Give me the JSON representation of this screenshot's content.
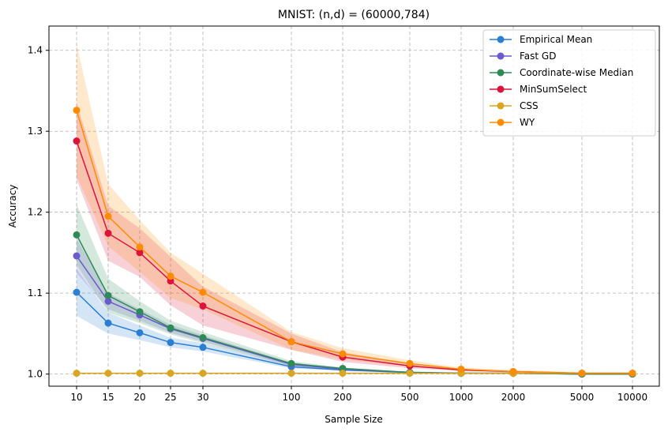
{
  "chart_data": {
    "type": "line",
    "title": "MNIST: (n,d) = (60000,784)",
    "xlabel": "Sample Size",
    "ylabel": "Accuracy",
    "x": [
      10,
      15,
      20,
      25,
      30,
      100,
      200,
      500,
      1000,
      2000,
      5000,
      10000
    ],
    "x_tick_labels": [
      "10",
      "15",
      "20",
      "25",
      "30",
      "100",
      "200",
      "500",
      "1000",
      "2000",
      "5000",
      "10000"
    ],
    "y_ticks": [
      1.0,
      1.1,
      1.2,
      1.3,
      1.4
    ],
    "y_tick_labels": [
      "1.0",
      "1.1",
      "1.2",
      "1.3",
      "1.4"
    ],
    "ylim": [
      0.985,
      1.43
    ],
    "grid": true,
    "legend_position": "top-right",
    "series": [
      {
        "name": "Empirical Mean",
        "color": "#2a7fd4",
        "values": [
          1.101,
          1.063,
          1.051,
          1.039,
          1.033,
          1.009,
          1.005,
          1.002,
          1.001,
          1.001,
          1.0,
          1.0
        ],
        "lower": [
          1.072,
          1.05,
          1.042,
          1.033,
          1.028,
          1.007,
          1.004,
          1.001,
          1.001,
          1.0,
          1.0,
          1.0
        ],
        "upper": [
          1.13,
          1.076,
          1.06,
          1.045,
          1.038,
          1.011,
          1.006,
          1.003,
          1.002,
          1.001,
          1.001,
          1.0
        ]
      },
      {
        "name": "Fast GD",
        "color": "#6a5acd",
        "values": [
          1.146,
          1.09,
          1.073,
          1.056,
          1.044,
          1.012,
          1.006,
          1.002,
          1.001,
          1.001,
          1.0,
          1.0
        ],
        "lower": [
          1.125,
          1.08,
          1.066,
          1.051,
          1.04,
          1.01,
          1.005,
          1.002,
          1.001,
          1.0,
          1.0,
          1.0
        ],
        "upper": [
          1.167,
          1.1,
          1.08,
          1.061,
          1.048,
          1.014,
          1.007,
          1.003,
          1.002,
          1.001,
          1.001,
          1.0
        ]
      },
      {
        "name": "Coordinate-wise Median",
        "color": "#2e8b57",
        "values": [
          1.172,
          1.097,
          1.077,
          1.057,
          1.045,
          1.013,
          1.007,
          1.002,
          1.001,
          1.001,
          1.0,
          1.0
        ],
        "lower": [
          1.135,
          1.076,
          1.063,
          1.049,
          1.038,
          1.01,
          1.005,
          1.001,
          1.001,
          1.0,
          1.0,
          1.0
        ],
        "upper": [
          1.21,
          1.118,
          1.09,
          1.066,
          1.052,
          1.016,
          1.008,
          1.003,
          1.002,
          1.001,
          1.001,
          1.0
        ]
      },
      {
        "name": "MinSumSelect",
        "color": "#dc143c",
        "values": [
          1.288,
          1.174,
          1.15,
          1.115,
          1.084,
          1.04,
          1.021,
          1.01,
          1.005,
          1.003,
          1.001,
          1.001
        ],
        "lower": [
          1.24,
          1.14,
          1.12,
          1.085,
          1.06,
          1.03,
          1.015,
          1.007,
          1.004,
          1.002,
          1.0,
          1.0
        ],
        "upper": [
          1.335,
          1.208,
          1.18,
          1.145,
          1.108,
          1.05,
          1.027,
          1.013,
          1.006,
          1.004,
          1.002,
          1.001
        ]
      },
      {
        "name": "CSS",
        "color": "#daa520",
        "values": [
          1.001,
          1.001,
          1.001,
          1.001,
          1.001,
          1.001,
          1.001,
          1.001,
          1.001,
          1.001,
          1.001,
          1.001
        ],
        "lower": [
          1.0,
          1.0,
          1.0,
          1.0,
          1.0,
          1.0,
          1.0,
          1.0,
          1.0,
          1.0,
          1.0,
          1.0
        ],
        "upper": [
          1.002,
          1.002,
          1.002,
          1.002,
          1.002,
          1.002,
          1.002,
          1.002,
          1.002,
          1.002,
          1.002,
          1.002
        ]
      },
      {
        "name": "WY",
        "color": "#ff8c00",
        "values": [
          1.326,
          1.195,
          1.157,
          1.121,
          1.101,
          1.04,
          1.025,
          1.013,
          1.006,
          1.003,
          1.001,
          1.001
        ],
        "lower": [
          1.245,
          1.158,
          1.126,
          1.094,
          1.08,
          1.03,
          1.018,
          1.009,
          1.004,
          1.002,
          1.0,
          1.0
        ],
        "upper": [
          1.408,
          1.235,
          1.19,
          1.15,
          1.124,
          1.052,
          1.032,
          1.017,
          1.008,
          1.005,
          1.002,
          1.001
        ]
      }
    ]
  }
}
